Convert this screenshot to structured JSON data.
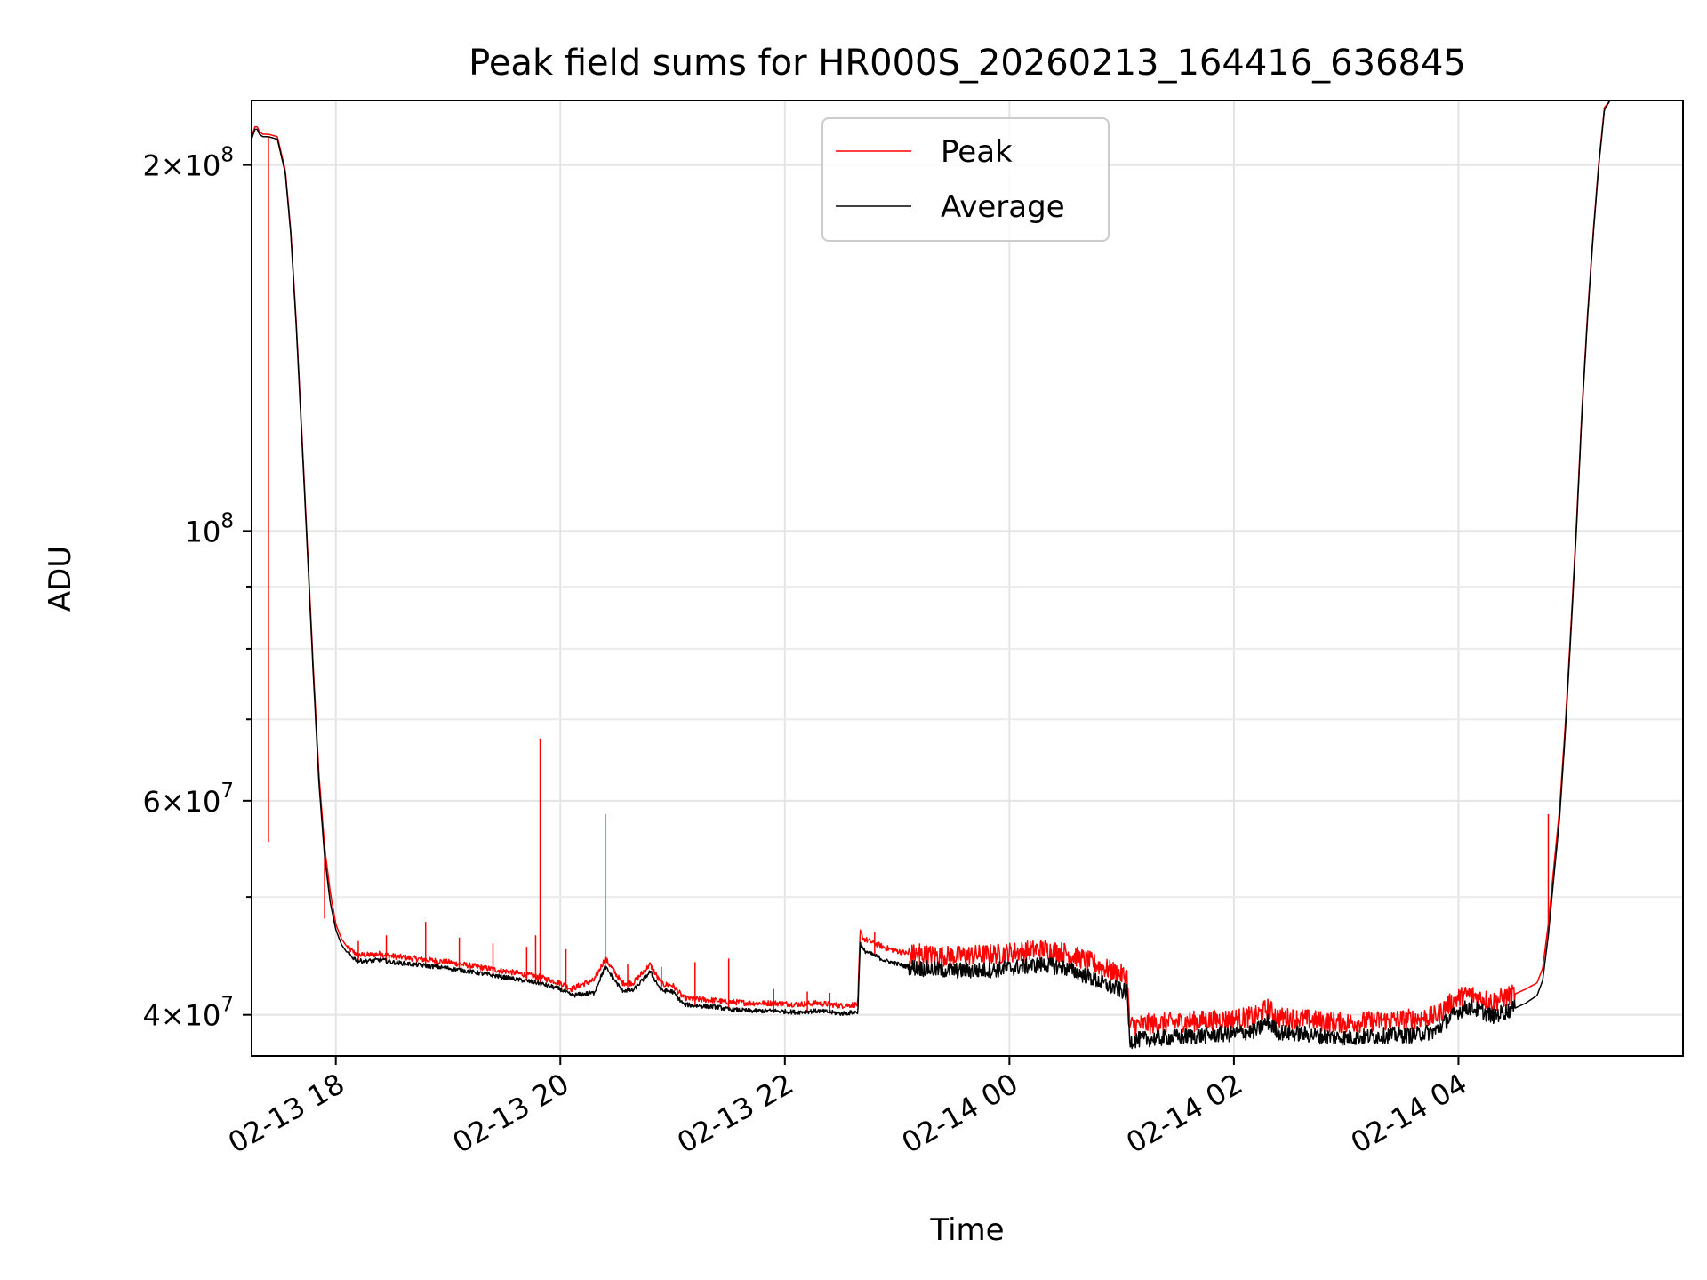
{
  "chart_data": {
    "type": "line",
    "title": "Peak field sums for HR000S_20260213_164416_636845",
    "xlabel": "Time",
    "ylabel": "ADU",
    "yscale": "log",
    "ylim": [
      37000000,
      226000000
    ],
    "xlim_hours": [
      -6.75,
      6.0
    ],
    "grid": true,
    "legend_position": "upper-center",
    "x_ticks": [
      {
        "hour": -6,
        "label": "02-13 18"
      },
      {
        "hour": -4,
        "label": "02-13 20"
      },
      {
        "hour": -2,
        "label": "02-13 22"
      },
      {
        "hour": 0,
        "label": "02-14 00"
      },
      {
        "hour": 2,
        "label": "02-14 02"
      },
      {
        "hour": 4,
        "label": "02-14 04"
      }
    ],
    "y_ticks": [
      {
        "value": 200000000,
        "mant": "2",
        "exp": "8"
      },
      {
        "value": 100000000,
        "mant": "",
        "exp": "8"
      },
      {
        "value": 60000000,
        "mant": "6",
        "exp": "7"
      },
      {
        "value": 40000000,
        "mant": "4",
        "exp": "7"
      }
    ],
    "y_minor_ticks": [
      50000000,
      70000000,
      80000000,
      90000000
    ],
    "series": [
      {
        "name": "Average",
        "color": "#000000",
        "x_hours": [
          -6.75,
          -6.72,
          -6.7,
          -6.68,
          -6.65,
          -6.6,
          -6.52,
          -6.45,
          -6.4,
          -6.35,
          -6.3,
          -6.25,
          -6.2,
          -6.15,
          -6.1,
          -6.05,
          -6.0,
          -5.95,
          -5.9,
          -5.85,
          -5.8,
          -5.7,
          -5.6,
          -5.5,
          -5.4,
          -5.2,
          -5.0,
          -4.8,
          -4.6,
          -4.4,
          -4.2,
          -4.0,
          -3.9,
          -3.8,
          -3.7,
          -3.6,
          -3.45,
          -3.35,
          -3.2,
          -3.1,
          -3.0,
          -2.9,
          -2.8,
          -2.6,
          -2.55,
          -2.5,
          -2.3,
          -2.1,
          -1.9,
          -1.7,
          -1.5,
          -1.35,
          -1.33,
          -1.3,
          -1.1,
          -0.9,
          -0.7,
          -0.5,
          -0.3,
          -0.1,
          0.1,
          0.3,
          0.5,
          0.7,
          0.9,
          1.05,
          1.07,
          1.2,
          1.4,
          1.6,
          1.8,
          2.0,
          2.2,
          2.3,
          2.4,
          2.6,
          2.8,
          3.0,
          3.2,
          3.4,
          3.6,
          3.8,
          3.9,
          4.0,
          4.1,
          4.2,
          4.3,
          4.4,
          4.5,
          4.6,
          4.7,
          4.75,
          4.8,
          4.85,
          4.9,
          4.95,
          5.0,
          5.05,
          5.1,
          5.15,
          5.2,
          5.25,
          5.3,
          5.35,
          5.4
        ],
        "values": [
          210000000,
          214000000,
          214000000,
          212000000,
          211000000,
          211000000,
          210000000,
          197000000,
          175000000,
          146000000,
          118000000,
          95000000,
          76000000,
          62000000,
          54000000,
          49500000,
          47000000,
          45700000,
          45000000,
          44600000,
          44300000,
          44300000,
          44400000,
          44200000,
          44100000,
          43900000,
          43700000,
          43400000,
          43100000,
          42800000,
          42500000,
          42000000,
          41500000,
          41600000,
          41700000,
          43800000,
          41900000,
          41900000,
          43400000,
          41900000,
          41800000,
          40800000,
          40700000,
          40600000,
          40500000,
          40400000,
          40300000,
          40300000,
          40200000,
          40300000,
          40100000,
          40200000,
          45800000,
          45200000,
          44300000,
          43800000,
          43600000,
          43500000,
          43500000,
          43600000,
          43800000,
          44000000,
          43700000,
          43000000,
          42200000,
          41700000,
          38100000,
          38200000,
          38300000,
          38400000,
          38500000,
          38600000,
          38800000,
          39500000,
          38700000,
          38600000,
          38400000,
          38300000,
          38400000,
          38500000,
          38500000,
          38800000,
          39600000,
          40300000,
          40600000,
          40300000,
          39900000,
          40200000,
          40500000,
          40900000,
          41500000,
          42700000,
          46500000,
          52000000,
          58000000,
          68000000,
          82000000,
          100000000,
          125000000,
          150000000,
          175000000,
          200000000,
          222000000,
          226000000,
          226000000
        ]
      },
      {
        "name": "Peak",
        "color": "#ff0000",
        "x_hours": [
          -6.75,
          -6.72,
          -6.7,
          -6.68,
          -6.65,
          -6.6,
          -6.52,
          -6.45,
          -6.4,
          -6.35,
          -6.3,
          -6.25,
          -6.2,
          -6.15,
          -6.1,
          -6.05,
          -6.0,
          -5.95,
          -5.9,
          -5.85,
          -5.8,
          -5.7,
          -5.6,
          -5.5,
          -5.4,
          -5.2,
          -5.0,
          -4.8,
          -4.6,
          -4.4,
          -4.2,
          -4.0,
          -3.9,
          -3.8,
          -3.7,
          -3.6,
          -3.45,
          -3.35,
          -3.2,
          -3.1,
          -3.0,
          -2.9,
          -2.8,
          -2.6,
          -2.55,
          -2.5,
          -2.3,
          -2.1,
          -1.9,
          -1.7,
          -1.5,
          -1.35,
          -1.33,
          -1.3,
          -1.1,
          -0.9,
          -0.7,
          -0.5,
          -0.3,
          -0.1,
          0.1,
          0.3,
          0.5,
          0.7,
          0.9,
          1.05,
          1.07,
          1.2,
          1.4,
          1.6,
          1.8,
          2.0,
          2.2,
          2.3,
          2.4,
          2.6,
          2.8,
          3.0,
          3.2,
          3.4,
          3.6,
          3.8,
          3.9,
          4.0,
          4.1,
          4.2,
          4.3,
          4.4,
          4.5,
          4.6,
          4.7,
          4.75,
          4.8,
          4.85,
          4.9,
          4.95,
          5.0,
          5.05,
          5.1,
          5.15,
          5.2,
          5.25,
          5.3,
          5.35,
          5.4
        ],
        "values": [
          211000000,
          215000000,
          215000000,
          213000000,
          212000000,
          212000000,
          211000000,
          198000000,
          176000000,
          147000000,
          119000000,
          96000000,
          77000000,
          63000000,
          55000000,
          50500000,
          47500000,
          46200000,
          45500000,
          45100000,
          44800000,
          44800000,
          44900000,
          44700000,
          44600000,
          44400000,
          44200000,
          43900000,
          43600000,
          43300000,
          43000000,
          42500000,
          42000000,
          42400000,
          42700000,
          44500000,
          42500000,
          42500000,
          44000000,
          42400000,
          42300000,
          41300000,
          41200000,
          41100000,
          41000000,
          41000000,
          40900000,
          40900000,
          40800000,
          40900000,
          40700000,
          40800000,
          46800000,
          46200000,
          45400000,
          44900000,
          44800000,
          44700000,
          44800000,
          44900000,
          45100000,
          45300000,
          45000000,
          44300000,
          43500000,
          43000000,
          39200000,
          39300000,
          39400000,
          39500000,
          39600000,
          39700000,
          39900000,
          40500000,
          39800000,
          39700000,
          39500000,
          39400000,
          39500000,
          39600000,
          39700000,
          39900000,
          40700000,
          41300000,
          41600000,
          41300000,
          41000000,
          41300000,
          41600000,
          42000000,
          42500000,
          43700000,
          47500000,
          53000000,
          59000000,
          69000000,
          83000000,
          101000000,
          126000000,
          151000000,
          176000000,
          201000000,
          223000000,
          226000000,
          226000000
        ],
        "spikes": [
          {
            "x_hour": -6.6,
            "value": 55500000
          },
          {
            "x_hour": -6.1,
            "value": 48000000
          },
          {
            "x_hour": -5.8,
            "value": 46000000
          },
          {
            "x_hour": -5.55,
            "value": 46500000
          },
          {
            "x_hour": -5.2,
            "value": 47700000
          },
          {
            "x_hour": -4.9,
            "value": 46300000
          },
          {
            "x_hour": -4.6,
            "value": 45800000
          },
          {
            "x_hour": -4.3,
            "value": 45500000
          },
          {
            "x_hour": -4.22,
            "value": 46500000
          },
          {
            "x_hour": -4.18,
            "value": 67500000
          },
          {
            "x_hour": -3.95,
            "value": 45300000
          },
          {
            "x_hour": -3.6,
            "value": 58500000
          },
          {
            "x_hour": -3.4,
            "value": 44000000
          },
          {
            "x_hour": -3.1,
            "value": 43800000
          },
          {
            "x_hour": -2.8,
            "value": 44200000
          },
          {
            "x_hour": -2.5,
            "value": 44500000
          },
          {
            "x_hour": -2.1,
            "value": 42000000
          },
          {
            "x_hour": -1.8,
            "value": 41800000
          },
          {
            "x_hour": -1.6,
            "value": 41700000
          },
          {
            "x_hour": -1.2,
            "value": 46800000
          },
          {
            "x_hour": -0.8,
            "value": 45800000
          },
          {
            "x_hour": 4.8,
            "value": 58500000
          }
        ]
      }
    ]
  }
}
